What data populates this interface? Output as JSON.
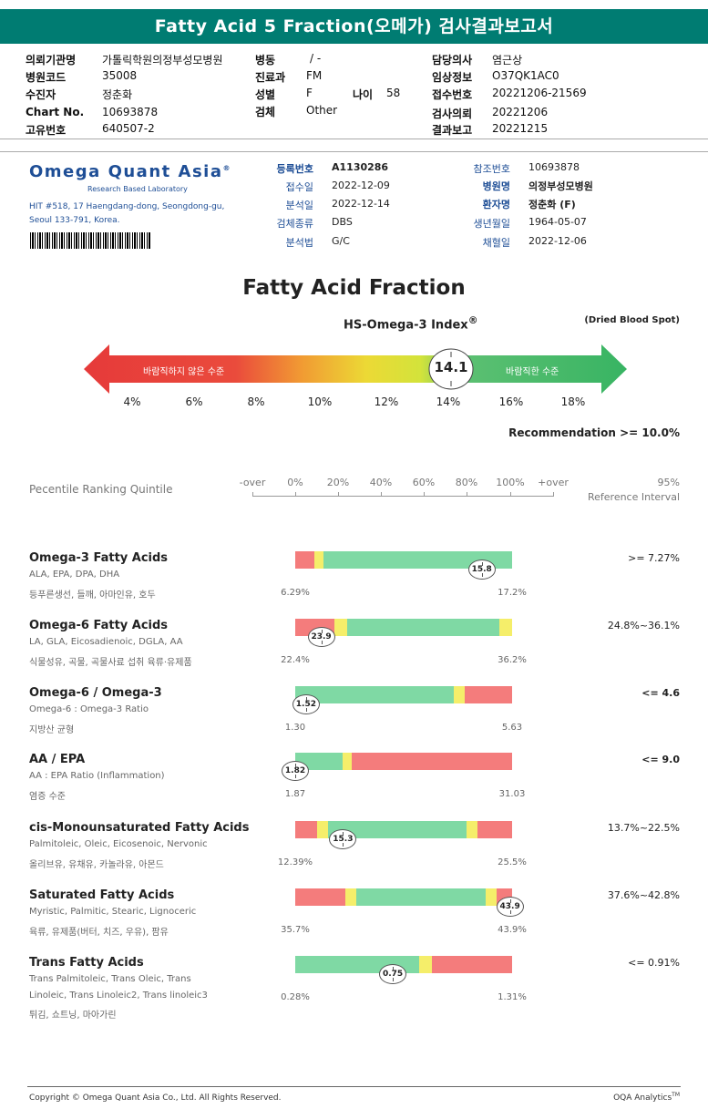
{
  "title": "Fatty Acid 5 Fraction(오메가) 검사결과보고서",
  "header": {
    "institution_label": "의뢰기관명",
    "institution": "가톨릭학원의정부성모병원",
    "hospital_code_label": "병원코드",
    "hospital_code": "35008",
    "patient_label": "수진자",
    "patient": "정춘화",
    "chart_label": "Chart No.",
    "chart": "10693878",
    "unique_label": "고유번호",
    "unique": "640507-2",
    "ward_label": "병동",
    "ward": "/ -",
    "dept_label": "진료과",
    "dept": "FM",
    "sex_label": "성별",
    "sex": "F",
    "age_label": "나이",
    "age": "58",
    "specimen_label": "검체",
    "specimen": "Other",
    "doctor_label": "담당의사",
    "doctor": "염근상",
    "clinical_label": "임상정보",
    "clinical": "O37QK1AC0",
    "receipt_label": "접수번호",
    "receipt": "20221206-21569",
    "request_label": "검사의뢰",
    "request": "20221206",
    "report_label": "결과보고",
    "report": "20221215"
  },
  "lab": {
    "name": "Omega Quant Asia",
    "tagline": "Research Based Laboratory",
    "address1": "HIT #518, 17 Haengdang-dong, Seongdong-gu,",
    "address2": "Seoul 133-791, Korea."
  },
  "info": {
    "reg_label": "등록번호",
    "reg": "A1130286",
    "recv_label": "접수일",
    "recv": "2022-12-09",
    "anal_label": "분석일",
    "anal": "2022-12-14",
    "type_label": "검체종류",
    "type": "DBS",
    "method_label": "분석법",
    "method": "G/C",
    "ref_label": "참조번호",
    "ref": "10693878",
    "hosp_label": "병원명",
    "hosp": "의정부성모병원",
    "pname_label": "환자명",
    "pname": "정춘화 (F)",
    "dob_label": "생년월일",
    "dob": "1964-05-07",
    "draw_label": "채혈일",
    "draw": "2022-12-06"
  },
  "index": {
    "heading": "Fatty Acid Fraction",
    "label": "HS-Omega-3 Index",
    "reg_mark": "®",
    "specimen_note": "(Dried Blood Spot)",
    "value": "14.1",
    "bad_label": "바람직하지 않은 수준",
    "good_label": "바람직한 수준",
    "ticks": [
      "4%",
      "6%",
      "8%",
      "10%",
      "12%",
      "14%",
      "16%",
      "18%"
    ],
    "recommendation": "Recommendation  >= 10.0%"
  },
  "scale": {
    "label": "Pecentile Ranking Quintile",
    "ticks": [
      "-over",
      "0%",
      "20%",
      "40%",
      "60%",
      "80%",
      "100%",
      "+over"
    ],
    "ref_title": "95%",
    "ref_sub": "Reference Interval"
  },
  "measures": [
    {
      "title": "Omega-3 Fatty Acids",
      "sub": "ALA, EPA, DPA, DHA",
      "sub2": "",
      "kor": "등푸른생선, 들깨, 아마인유, 호두",
      "min": "6.29%",
      "max": "17.2%",
      "ref": ">= 7.27%",
      "ref_bold": false,
      "value": "15.8",
      "pos": 0.86,
      "segments": [
        {
          "c": "#f47c7c",
          "w": 0.09
        },
        {
          "c": "#f5ee6a",
          "w": 0.04
        },
        {
          "c": "#7fd9a4",
          "w": 0.87
        }
      ]
    },
    {
      "title": "Omega-6 Fatty Acids",
      "sub": "LA, GLA, Eicosadienoic, DGLA, AA",
      "sub2": "",
      "kor": "식물성유, 곡물, 곡물사료 섭취 육류·유제품",
      "min": "22.4%",
      "max": "36.2%",
      "ref": "24.8%~36.1%",
      "ref_bold": false,
      "value": "23.9",
      "pos": 0.12,
      "segments": [
        {
          "c": "#f47c7c",
          "w": 0.18
        },
        {
          "c": "#f5ee6a",
          "w": 0.06
        },
        {
          "c": "#7fd9a4",
          "w": 0.7
        },
        {
          "c": "#f5ee6a",
          "w": 0.06
        }
      ]
    },
    {
      "title": "Omega-6 / Omega-3",
      "sub": "Omega-6 : Omega-3 Ratio",
      "sub2": "",
      "kor": "지방산 균형",
      "min": "1.30",
      "max": "5.63",
      "ref": "<= 4.6",
      "ref_bold": true,
      "value": "1.52",
      "pos": 0.05,
      "segments": [
        {
          "c": "#7fd9a4",
          "w": 0.73
        },
        {
          "c": "#f5ee6a",
          "w": 0.05
        },
        {
          "c": "#f47c7c",
          "w": 0.22
        }
      ]
    },
    {
      "title": "AA / EPA",
      "sub": "AA : EPA Ratio (Inflammation)",
      "sub2": "",
      "kor": "염증 수준",
      "min": "1.87",
      "max": "31.03",
      "ref": "<= 9.0",
      "ref_bold": true,
      "value": "1.82",
      "pos": 0.0,
      "segments": [
        {
          "c": "#7fd9a4",
          "w": 0.22
        },
        {
          "c": "#f5ee6a",
          "w": 0.04
        },
        {
          "c": "#f47c7c",
          "w": 0.74
        }
      ]
    },
    {
      "title": "cis-Monounsaturated Fatty Acids",
      "sub": "Palmitoleic, Oleic, Eicosenoic, Nervonic",
      "sub2": "",
      "kor": "올리브유, 유채유, 카놀라유, 아몬드",
      "min": "12.39%",
      "max": "25.5%",
      "ref": "13.7%~22.5%",
      "ref_bold": false,
      "value": "15.3",
      "pos": 0.22,
      "segments": [
        {
          "c": "#f47c7c",
          "w": 0.1
        },
        {
          "c": "#f5ee6a",
          "w": 0.05
        },
        {
          "c": "#7fd9a4",
          "w": 0.64
        },
        {
          "c": "#f5ee6a",
          "w": 0.05
        },
        {
          "c": "#f47c7c",
          "w": 0.16
        }
      ]
    },
    {
      "title": "Saturated Fatty Acids",
      "sub": "Myristic, Palmitic, Stearic, Lignoceric",
      "sub2": "",
      "kor": "육류, 유제품(버터, 치즈, 우유), 팜유",
      "min": "35.7%",
      "max": "43.9%",
      "ref": "37.6%~42.8%",
      "ref_bold": false,
      "value": "43.9",
      "pos": 0.99,
      "segments": [
        {
          "c": "#f47c7c",
          "w": 0.23
        },
        {
          "c": "#f5ee6a",
          "w": 0.05
        },
        {
          "c": "#7fd9a4",
          "w": 0.6
        },
        {
          "c": "#f5ee6a",
          "w": 0.05
        },
        {
          "c": "#f47c7c",
          "w": 0.07
        }
      ]
    },
    {
      "title": "Trans Fatty Acids",
      "sub": "Trans Palmitoleic, Trans Oleic, Trans",
      "sub2": "Linoleic, Trans Linoleic2, Trans linoleic3",
      "kor": "튀김, 쇼트닝, 마아가린",
      "min": "0.28%",
      "max": "1.31%",
      "ref": "<= 0.91%",
      "ref_bold": false,
      "value": "0.75",
      "pos": 0.45,
      "segments": [
        {
          "c": "#7fd9a4",
          "w": 0.57
        },
        {
          "c": "#f5ee6a",
          "w": 0.06
        },
        {
          "c": "#f47c7c",
          "w": 0.37
        }
      ]
    }
  ],
  "footer": {
    "copyright": "Copyright © Omega Quant Asia Co., Ltd.  All Rights Reserved.",
    "brand": "OQA Analytics",
    "brand_mark": "TM"
  }
}
